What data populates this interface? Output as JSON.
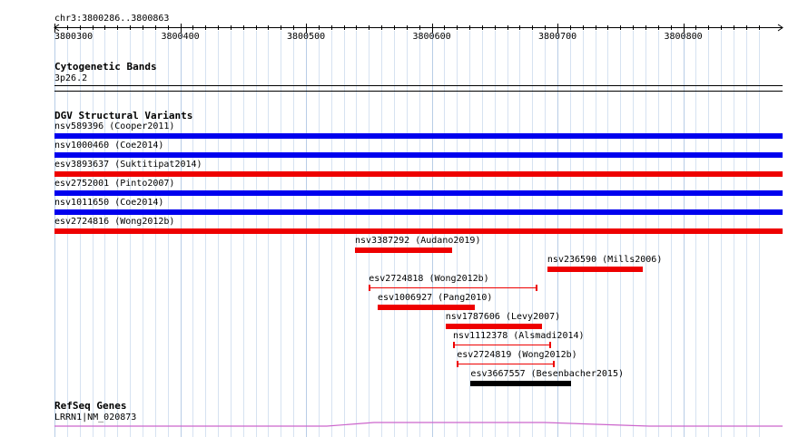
{
  "ruler": {
    "location": "chr3:3800286..3800863",
    "ticks": [
      "3800300",
      "3800400",
      "3800500",
      "3800600",
      "3800700",
      "3800800"
    ]
  },
  "tracks": {
    "cytoband": {
      "title": "Cytogenetic Bands",
      "band": "3p26.2"
    },
    "dgv": {
      "title": "DGV Structural Variants",
      "full_span": [
        {
          "label": "nsv589396 (Cooper2011)",
          "color": "#0000ee"
        },
        {
          "label": "nsv1000460 (Coe2014)",
          "color": "#0000ee"
        },
        {
          "label": "esv3893637 (Suktitipat2014)",
          "color": "#ee0000"
        },
        {
          "label": "esv2752001 (Pinto2007)",
          "color": "#0000ee"
        },
        {
          "label": "nsv1011650 (Coe2014)",
          "color": "#0000ee"
        },
        {
          "label": "esv2724816 (Wong2012b)",
          "color": "#ee0000"
        }
      ],
      "features": [
        {
          "label": "nsv3387292 (Audano2019)",
          "start": 3800539,
          "end": 3800616,
          "color": "#ee0000",
          "style": "bar"
        },
        {
          "label": "nsv236590 (Mills2006)",
          "start": 3800692,
          "end": 3800768,
          "color": "#ee0000",
          "style": "bar"
        },
        {
          "label": "esv2724818 (Wong2012b)",
          "start": 3800550,
          "end": 3800684,
          "color": "#ee0000",
          "style": "thin"
        },
        {
          "label": "esv1006927 (Pang2010)",
          "start": 3800557,
          "end": 3800634,
          "color": "#ee0000",
          "style": "bar"
        },
        {
          "label": "nsv1787606 (Levy2007)",
          "start": 3800611,
          "end": 3800688,
          "color": "#ee0000",
          "style": "bar"
        },
        {
          "label": "nsv1112378 (Alsmadi2014)",
          "start": 3800617,
          "end": 3800695,
          "color": "#ee0000",
          "style": "thin"
        },
        {
          "label": "esv2724819 (Wong2012b)",
          "start": 3800620,
          "end": 3800698,
          "color": "#ee0000",
          "style": "thin"
        },
        {
          "label": "esv3667557 (Besenbacher2015)",
          "start": 3800631,
          "end": 3800711,
          "color": "#000000",
          "style": "bar"
        }
      ]
    },
    "refseq": {
      "title": "RefSeq Genes",
      "gene": "LRRN1|NM_020873",
      "color": "#cc66cc"
    }
  }
}
